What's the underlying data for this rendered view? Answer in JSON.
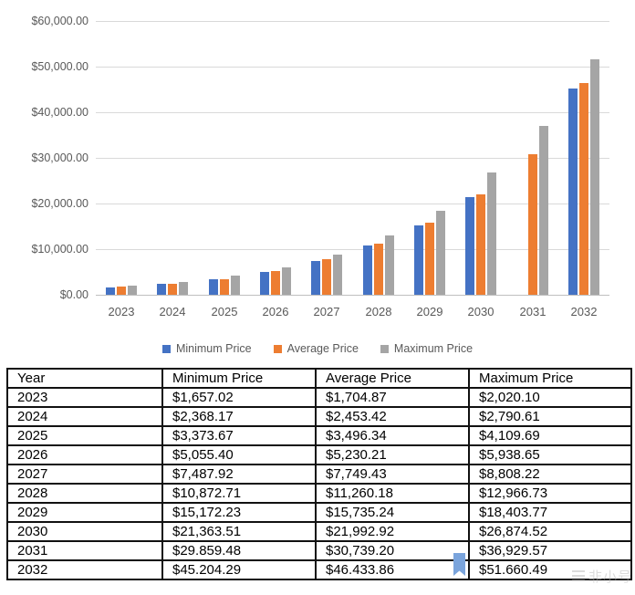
{
  "chart": {
    "y_axis_labels": [
      "$60,000.00",
      "$50,000.00",
      "$40,000.00",
      "$30,000.00",
      "$20,000.00",
      "$10,000.00",
      "$0.00"
    ],
    "legend": [
      {
        "label": "Minimum Price",
        "color": "#4472C4"
      },
      {
        "label": "Average Price",
        "color": "#ED7D31"
      },
      {
        "label": "Maximum Price",
        "color": "#A5A5A5"
      }
    ]
  },
  "chart_data": {
    "type": "bar",
    "title": "",
    "xlabel": "",
    "ylabel": "",
    "categories": [
      "2023",
      "2024",
      "2025",
      "2026",
      "2027",
      "2028",
      "2029",
      "2030",
      "2031",
      "2032"
    ],
    "series": [
      {
        "name": "Minimum Price",
        "color": "#4472C4",
        "values": [
          1657.02,
          2368.17,
          3373.67,
          5055.4,
          7487.92,
          10872.71,
          15172.23,
          21363.51,
          29859.48,
          45204.29
        ],
        "hidden_indices": [
          8
        ]
      },
      {
        "name": "Average Price",
        "color": "#ED7D31",
        "values": [
          1704.87,
          2453.42,
          3496.34,
          5230.21,
          7749.43,
          11260.18,
          15735.24,
          21992.92,
          30739.2,
          46433.86
        ],
        "hidden_indices": []
      },
      {
        "name": "Maximum Price",
        "color": "#A5A5A5",
        "values": [
          2020.1,
          2790.61,
          4109.69,
          5938.65,
          8808.22,
          12966.73,
          18403.77,
          26874.52,
          36929.57,
          51660.49
        ],
        "hidden_indices": []
      }
    ],
    "ylim": [
      0,
      60000
    ],
    "y_tick_step": 10000,
    "grid": true,
    "legend_position": "bottom",
    "note": "Minimum Price bar for 2031 is not drawn in the chart (appears as blue bookmark artifact over the table)"
  },
  "table": {
    "headers": [
      "Year",
      "Minimum Price",
      "Average Price",
      "Maximum Price"
    ],
    "rows": [
      [
        "2023",
        "$1,657.02",
        "$1,704.87",
        "$2,020.10"
      ],
      [
        "2024",
        "$2,368.17",
        "$2,453.42",
        "$2,790.61"
      ],
      [
        "2025",
        "$3,373.67",
        "$3,496.34",
        "$4,109.69"
      ],
      [
        "2026",
        "$5,055.40",
        "$5,230.21",
        "$5,938.65"
      ],
      [
        "2027",
        "$7,487.92",
        "$7,749.43",
        "$8,808.22"
      ],
      [
        "2028",
        "$10,872.71",
        "$11,260.18",
        "$12,966.73"
      ],
      [
        "2029",
        "$15,172.23",
        "$15,735.24",
        "$18,403.77"
      ],
      [
        "2030",
        "$21,363.51",
        "$21,992.92",
        "$26,874.52"
      ],
      [
        "2031",
        "$29.859.48",
        "$30,739.20",
        "$36,929.57"
      ],
      [
        "2032",
        "$45.204.29",
        "$46.433.86",
        "$51.660.49"
      ]
    ]
  },
  "watermark": {
    "text": "非小号"
  },
  "colors": {
    "min_bar": "#4472C4",
    "avg_bar": "#ED7D31",
    "max_bar": "#A5A5A5",
    "gridline": "#D9D9D9",
    "axis_line": "#BFBFBF",
    "axis_text": "#595959",
    "table_border": "#111111",
    "bookmark_artifact": "#7AA4DC"
  }
}
